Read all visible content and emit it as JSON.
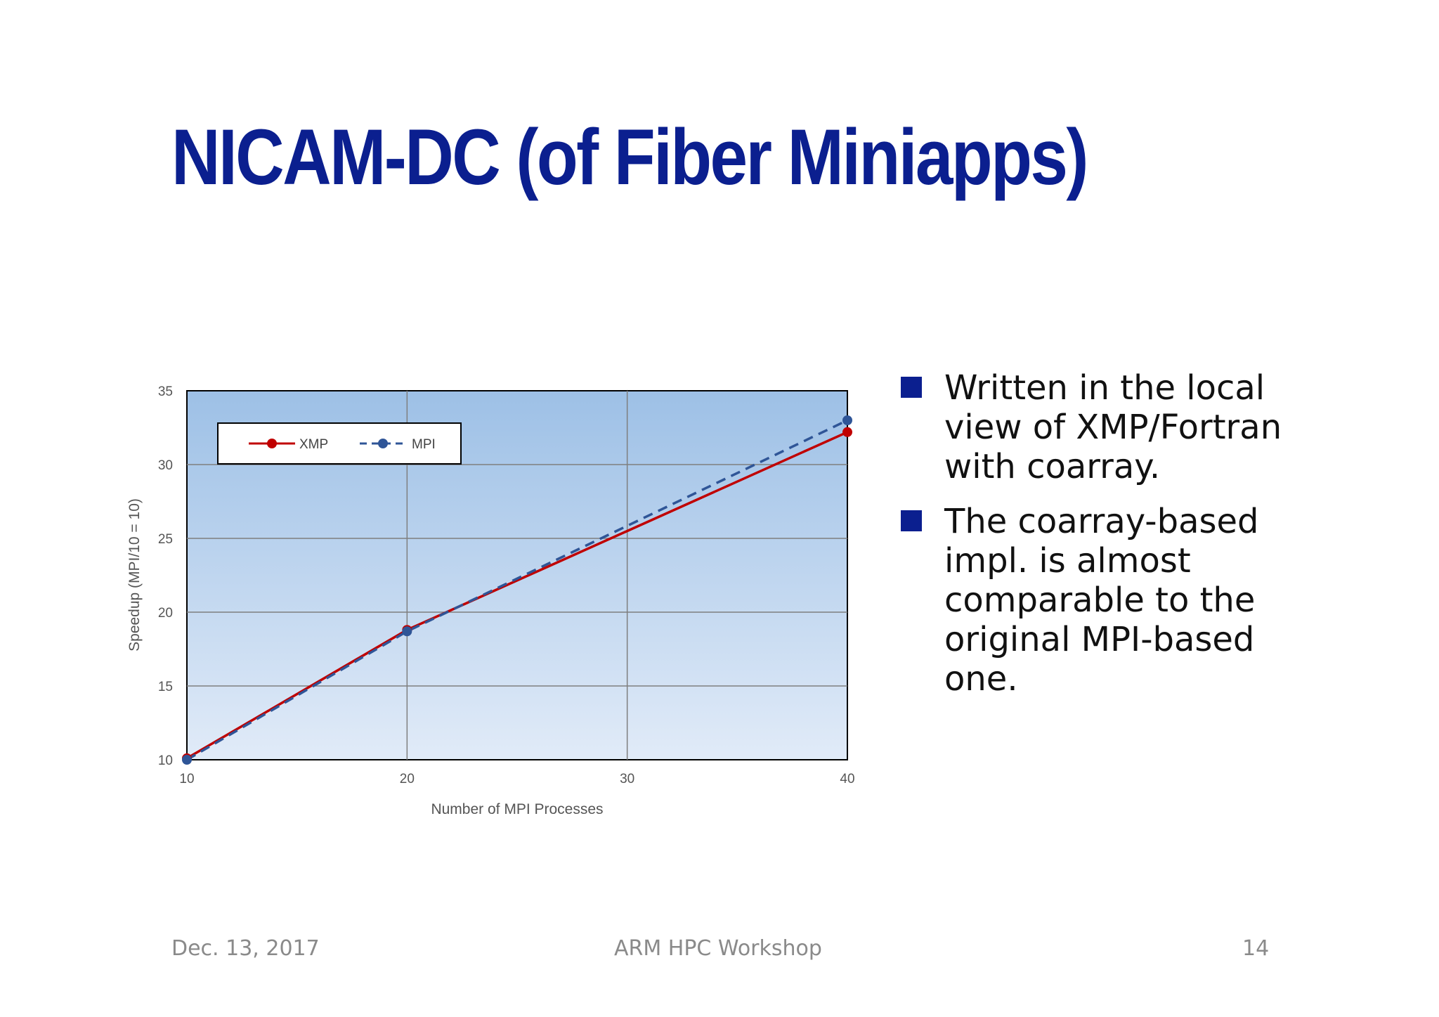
{
  "slide": {
    "title": "NICAM-DC (of Fiber Miniapps)",
    "bullets": [
      "Written in the local view of XMP/Fortran with coarray.",
      "The coarray-based impl. is almost comparable to the original MPI-based one."
    ],
    "footer": {
      "date": "Dec. 13, 2017",
      "event": "ARM HPC Workshop",
      "page": "14"
    },
    "colors": {
      "title": "#0b1f8f",
      "bullet_marker": "#0b1f8f",
      "body_text": "#111111",
      "footer_text": "#8a8a8a"
    }
  },
  "chart_data": {
    "type": "line",
    "title": "",
    "xlabel": "Number of MPI Processes",
    "ylabel": "Speedup (MPI/10 = 10)",
    "x": [
      10,
      20,
      40
    ],
    "xlim": [
      10,
      40
    ],
    "ylim": [
      10,
      35
    ],
    "xticks": [
      10,
      20,
      30,
      40
    ],
    "yticks": [
      10,
      15,
      20,
      25,
      30,
      35
    ],
    "grid": true,
    "legend": "top-left",
    "series": [
      {
        "name": "XMP",
        "values": [
          10.1,
          18.8,
          32.2
        ],
        "color": "#c00000",
        "style": "solid"
      },
      {
        "name": "MPI",
        "values": [
          10.0,
          18.7,
          33.0
        ],
        "color": "#2f5597",
        "style": "dashed"
      }
    ]
  }
}
